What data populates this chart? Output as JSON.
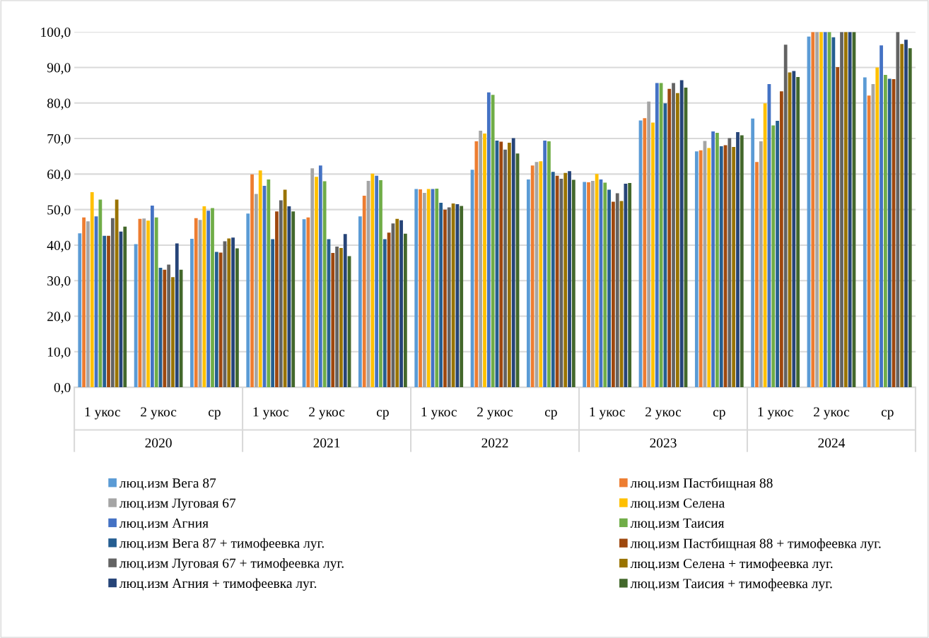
{
  "chart_data": {
    "type": "bar",
    "categories": [
      "1 укос",
      "2 укос",
      "ср",
      "1 укос",
      "2 укос",
      "ср",
      "1 укос",
      "2 укос",
      "ср",
      "1 укос",
      "2 укос",
      "ср",
      "1 укос",
      "2 укос",
      "ср"
    ],
    "annotations": [
      "2020",
      "2021",
      "2022",
      "2023",
      "2024"
    ],
    "ylim": [
      0,
      100
    ],
    "yticks": [
      {
        "value": 0,
        "label": "0,0"
      },
      {
        "value": 10,
        "label": "10,0"
      },
      {
        "value": 20,
        "label": "20,0"
      },
      {
        "value": 30,
        "label": "30,0"
      },
      {
        "value": 40,
        "label": "40,0"
      },
      {
        "value": 50,
        "label": "50,0"
      },
      {
        "value": 60,
        "label": "60,0"
      },
      {
        "value": 70,
        "label": "70,0"
      },
      {
        "value": 80,
        "label": "80,0"
      },
      {
        "value": 90,
        "label": "90,0"
      },
      {
        "value": 100,
        "label": "100,0"
      }
    ],
    "grid": "y",
    "legend": "bottom",
    "series": [
      {
        "name": "люц.изм Вега 87",
        "color": "#5b9bd5",
        "values": [
          43.3,
          40.3,
          41.8,
          48.9,
          47.3,
          48.1,
          55.8,
          61.2,
          58.5,
          57.8,
          75.1,
          66.4,
          75.6,
          98.7,
          87.2
        ]
      },
      {
        "name": "люц.изм Пастбищная 88",
        "color": "#ed7d31",
        "values": [
          47.8,
          47.4,
          47.6,
          59.9,
          47.8,
          53.9,
          55.7,
          69.2,
          62.4,
          57.7,
          75.7,
          66.7,
          63.4,
          100,
          82.1
        ]
      },
      {
        "name": "люц.изм Луговая 67",
        "color": "#a5a5a5",
        "values": [
          46.7,
          47.5,
          47.1,
          54.4,
          61.6,
          58.1,
          54.7,
          72.2,
          63.4,
          58.1,
          80.4,
          69.3,
          69.2,
          100,
          85.3
        ]
      },
      {
        "name": "люц.изм Селена",
        "color": "#ffc000",
        "values": [
          54.9,
          46.9,
          50.9,
          61.0,
          59.2,
          60.1,
          55.8,
          71.4,
          63.6,
          60.0,
          74.5,
          67.3,
          79.9,
          100,
          90.0
        ]
      },
      {
        "name": "люц.изм Агния",
        "color": "#4472c4",
        "values": [
          48.1,
          51.1,
          49.7,
          56.7,
          62.4,
          59.5,
          55.8,
          83.0,
          69.4,
          58.5,
          85.6,
          72.0,
          85.3,
          100,
          96.2
        ]
      },
      {
        "name": "люц.изм Таисия",
        "color": "#70ad47",
        "values": [
          52.8,
          47.8,
          50.4,
          58.5,
          58.0,
          58.3,
          55.9,
          82.3,
          69.2,
          57.6,
          85.6,
          71.6,
          73.7,
          100,
          87.9
        ]
      },
      {
        "name": "люц.изм Вега 87 + тимофеевка луг.",
        "color": "#255e91",
        "values": [
          42.6,
          33.6,
          38.1,
          41.7,
          41.7,
          41.7,
          51.9,
          69.4,
          60.6,
          55.6,
          79.9,
          67.8,
          75.0,
          98.5,
          86.8
        ]
      },
      {
        "name": "люц.изм Пастбищная 88 + тимофеевка луг.",
        "color": "#9e480e",
        "values": [
          42.6,
          33.1,
          37.9,
          49.5,
          37.8,
          43.5,
          50.0,
          69.1,
          59.5,
          52.2,
          84.0,
          68.1,
          83.3,
          90.1,
          86.7
        ]
      },
      {
        "name": "люц.изм Луговая 67 + тимофеевка луг.",
        "color": "#636363",
        "values": [
          47.6,
          34.5,
          41.1,
          52.6,
          39.6,
          46.1,
          50.6,
          66.9,
          58.7,
          54.6,
          85.6,
          70.1,
          96.4,
          100,
          100
        ]
      },
      {
        "name": "люц.изм Селена + тимофеевка луг.",
        "color": "#997300",
        "values": [
          52.8,
          31.0,
          41.9,
          55.6,
          39.2,
          47.4,
          51.7,
          68.8,
          60.3,
          52.4,
          82.8,
          67.6,
          88.6,
          100,
          96.6
        ]
      },
      {
        "name": "люц.изм Агния + тимофеевка луг.",
        "color": "#264478",
        "values": [
          43.8,
          40.5,
          42.1,
          50.9,
          43.1,
          47.0,
          51.5,
          70.1,
          60.8,
          57.3,
          86.4,
          71.8,
          89.0,
          100,
          97.8
        ]
      },
      {
        "name": "люц.изм Таисия + тимофеевка луг.",
        "color": "#43682b",
        "values": [
          45.2,
          33.1,
          39.1,
          49.5,
          36.9,
          43.2,
          51.0,
          65.8,
          58.4,
          57.5,
          84.3,
          70.9,
          87.3,
          100,
          95.4
        ]
      }
    ]
  }
}
